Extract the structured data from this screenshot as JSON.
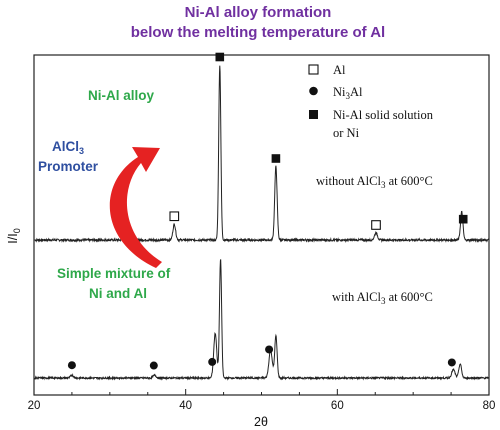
{
  "titles": {
    "line1": "Ni-Al alloy formation",
    "line2": "below the melting temperature of Al"
  },
  "annotations": {
    "alloy": "Ni-Al alloy",
    "promoter_main": "AlCl",
    "promoter_sub": "3",
    "promoter_word": "Promoter",
    "mixture_line1": "Simple mixture of",
    "mixture_line2": "Ni and Al"
  },
  "legend": [
    {
      "marker": "open-square",
      "text": "Al",
      "sub": ""
    },
    {
      "marker": "filled-circle",
      "text_before": "Ni",
      "sub": "3",
      "text_after": "Al"
    },
    {
      "marker": "filled-square",
      "text": "Ni-Al solid solution",
      "text2": "or Ni"
    }
  ],
  "colors": {
    "title": "#7030a0",
    "green_text": "#2ea84a",
    "blue_text": "#2f4fa0",
    "arrow": "#e52222",
    "trace": "#222222"
  },
  "chart_data": {
    "type": "line",
    "xlabel": "2θ",
    "ylabel_main": "I/I",
    "ylabel_sub": "0",
    "xlim": [
      20,
      80
    ],
    "xticks": [
      20,
      40,
      60,
      80
    ],
    "grid": false,
    "series": [
      {
        "name": "",
        "condition_before": "without AlCl",
        "condition_sub": "3",
        "condition_after": " at 600°C",
        "peaks": [
          {
            "x": 38.5,
            "h": 0.09,
            "w": 0.18
          },
          {
            "x": 44.5,
            "h": 1.0,
            "w": 0.14
          },
          {
            "x": 51.9,
            "h": 0.42,
            "w": 0.16
          },
          {
            "x": 65.1,
            "h": 0.04,
            "w": 0.2
          },
          {
            "x": 76.4,
            "h": 0.16,
            "w": 0.16
          }
        ],
        "markers": [
          {
            "type": "open-square",
            "x": 38.5
          },
          {
            "type": "filled-square",
            "x": 44.5
          },
          {
            "type": "filled-square",
            "x": 51.9
          },
          {
            "type": "open-square",
            "x": 65.1
          },
          {
            "type": "filled-square",
            "x": 76.6
          }
        ]
      },
      {
        "name": "",
        "condition_before": "with AlCl",
        "condition_sub": "3",
        "condition_after": " at 600°C",
        "peaks": [
          {
            "x": 25.0,
            "h": 0.02,
            "w": 0.2
          },
          {
            "x": 35.9,
            "h": 0.02,
            "w": 0.2
          },
          {
            "x": 43.9,
            "h": 0.32,
            "w": 0.2
          },
          {
            "x": 44.6,
            "h": 0.85,
            "w": 0.14
          },
          {
            "x": 51.2,
            "h": 0.2,
            "w": 0.22
          },
          {
            "x": 51.9,
            "h": 0.3,
            "w": 0.16
          },
          {
            "x": 75.3,
            "h": 0.06,
            "w": 0.22
          },
          {
            "x": 76.2,
            "h": 0.1,
            "w": 0.18
          }
        ],
        "markers": [
          {
            "type": "filled-circle",
            "x": 25.0
          },
          {
            "type": "filled-circle",
            "x": 35.8
          },
          {
            "type": "filled-circle",
            "x": 43.5
          },
          {
            "type": "filled-circle",
            "x": 51.0
          },
          {
            "type": "filled-circle",
            "x": 75.1
          }
        ]
      }
    ]
  }
}
